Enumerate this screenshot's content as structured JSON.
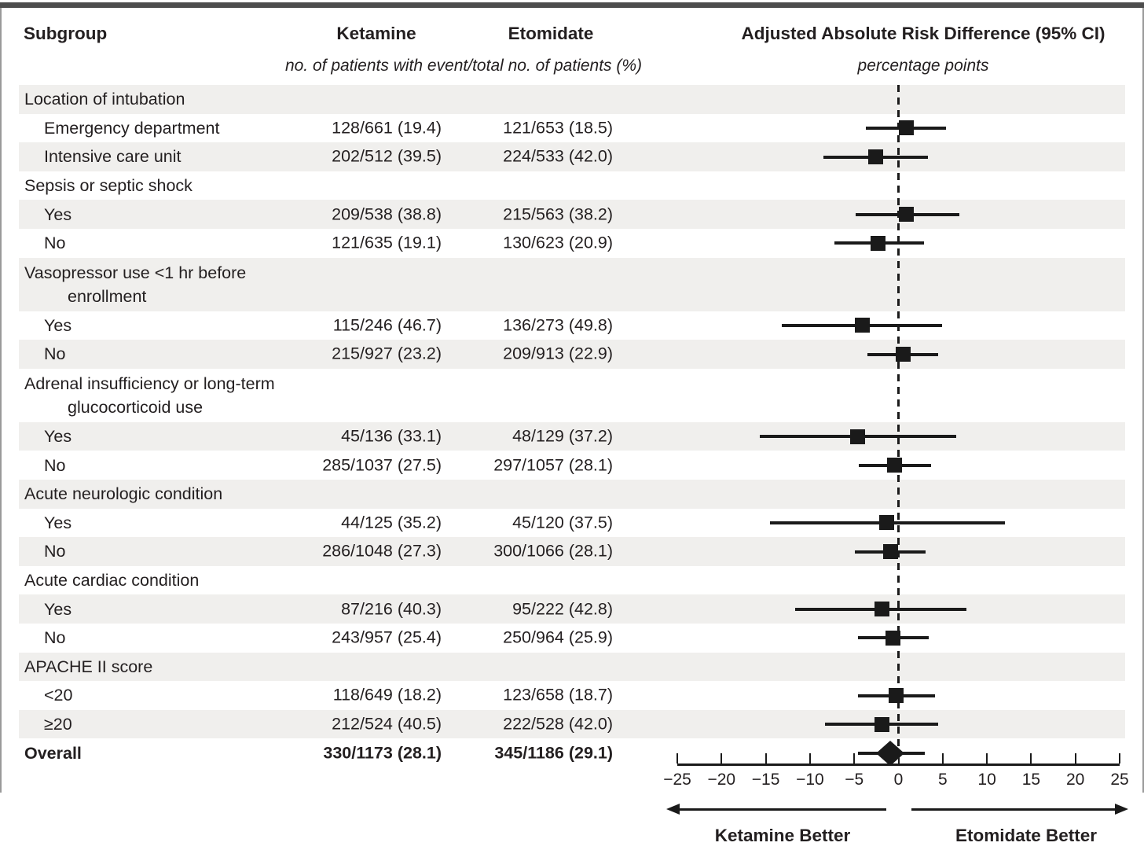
{
  "header": {
    "subgroup": "Subgroup",
    "ketamine": "Ketamine",
    "etomidate": "Etomidate",
    "events_note": "no. of patients with event/total no. of patients (%)",
    "effect_title": "Adjusted Absolute Risk Difference (95% CI)",
    "effect_units": "percentage points"
  },
  "footer": {
    "left_better": "Ketamine Better",
    "right_better": "Etomidate Better"
  },
  "colors": {
    "band": "#f0efed",
    "text": "#231f20",
    "marker": "#1a1a1a",
    "top_rule": "#4d4d4d"
  },
  "chart_data": {
    "type": "forest",
    "x_axis": {
      "label": "percentage points",
      "min": -25,
      "max": 25,
      "ticks": [
        -25,
        -20,
        -15,
        -10,
        -5,
        0,
        5,
        10,
        15,
        20,
        25
      ],
      "tick_labels": [
        "−25",
        "−20",
        "−15",
        "−10",
        "−5",
        "0",
        "5",
        "10",
        "15",
        "20",
        "25"
      ],
      "zero_line": 0
    },
    "rows": [
      {
        "kind": "group",
        "label": "Location of intubation",
        "shaded": true
      },
      {
        "kind": "item",
        "label": "Emergency department",
        "ketamine": "128/661 (19.4)",
        "etomidate": "121/653 (18.5)",
        "est": 0.9,
        "lo": -3.7,
        "hi": 5.4,
        "shaded": false
      },
      {
        "kind": "item",
        "label": "Intensive care unit",
        "ketamine": "202/512 (39.5)",
        "etomidate": "224/533 (42.0)",
        "est": -2.6,
        "lo": -8.5,
        "hi": 3.3,
        "shaded": true
      },
      {
        "kind": "group",
        "label": "Sepsis or septic shock",
        "shaded": false
      },
      {
        "kind": "item",
        "label": "Yes",
        "ketamine": "209/538 (38.8)",
        "etomidate": "215/563 (38.2)",
        "est": 0.9,
        "lo": -4.8,
        "hi": 6.9,
        "shaded": true
      },
      {
        "kind": "item",
        "label": "No",
        "ketamine": "121/635 (19.1)",
        "etomidate": "130/623 (20.9)",
        "est": -2.3,
        "lo": -7.2,
        "hi": 2.9,
        "shaded": false
      },
      {
        "kind": "group",
        "label": "Vasopressor use <1 hr before",
        "label2": "enrollment",
        "shaded": true
      },
      {
        "kind": "item",
        "label": "Yes",
        "ketamine": "115/246 (46.7)",
        "etomidate": "136/273 (49.8)",
        "est": -4.1,
        "lo": -13.2,
        "hi": 4.9,
        "shaded": false
      },
      {
        "kind": "item",
        "label": "No",
        "ketamine": "215/927 (23.2)",
        "etomidate": "209/913 (22.9)",
        "est": 0.5,
        "lo": -3.5,
        "hi": 4.5,
        "shaded": true
      },
      {
        "kind": "group",
        "label": "Adrenal insufficiency or long-term",
        "label2": "glucocorticoid use",
        "shaded": false
      },
      {
        "kind": "item",
        "label": "Yes",
        "ketamine": "45/136 (33.1)",
        "etomidate": "48/129 (37.2)",
        "est": -4.6,
        "lo": -15.7,
        "hi": 6.5,
        "shaded": true
      },
      {
        "kind": "item",
        "label": "No",
        "ketamine": "285/1037 (27.5)",
        "etomidate": "297/1057 (28.1)",
        "est": -0.4,
        "lo": -4.5,
        "hi": 3.7,
        "shaded": false
      },
      {
        "kind": "group",
        "label": "Acute neurologic condition",
        "shaded": true
      },
      {
        "kind": "item",
        "label": "Yes",
        "ketamine": "44/125 (35.2)",
        "etomidate": "45/120 (37.5)",
        "est": -1.3,
        "lo": -14.5,
        "hi": 12.0,
        "shaded": false
      },
      {
        "kind": "item",
        "label": "No",
        "ketamine": "286/1048 (27.3)",
        "etomidate": "300/1066 (28.1)",
        "est": -0.9,
        "lo": -4.9,
        "hi": 3.1,
        "shaded": true
      },
      {
        "kind": "group",
        "label": "Acute cardiac condition",
        "shaded": false
      },
      {
        "kind": "item",
        "label": "Yes",
        "ketamine": "87/216 (40.3)",
        "etomidate": "95/222 (42.8)",
        "est": -1.9,
        "lo": -11.7,
        "hi": 7.7,
        "shaded": true
      },
      {
        "kind": "item",
        "label": "No",
        "ketamine": "243/957 (25.4)",
        "etomidate": "250/964 (25.9)",
        "est": -0.6,
        "lo": -4.6,
        "hi": 3.4,
        "shaded": false
      },
      {
        "kind": "group",
        "label": "APACHE II score",
        "shaded": true
      },
      {
        "kind": "item",
        "label": "<20",
        "ketamine": "118/649 (18.2)",
        "etomidate": "123/658 (18.7)",
        "est": -0.3,
        "lo": -4.6,
        "hi": 4.1,
        "shaded": false
      },
      {
        "kind": "item",
        "label": "≥20",
        "ketamine": "212/524 (40.5)",
        "etomidate": "222/528 (42.0)",
        "est": -1.9,
        "lo": -8.3,
        "hi": 4.5,
        "shaded": true
      },
      {
        "kind": "overall",
        "label": "Overall",
        "ketamine": "330/1173 (28.1)",
        "etomidate": "345/1186 (29.1)",
        "est": -0.9,
        "lo": -4.6,
        "hi": 3.0,
        "shaded": false,
        "marker": "diamond"
      }
    ]
  }
}
